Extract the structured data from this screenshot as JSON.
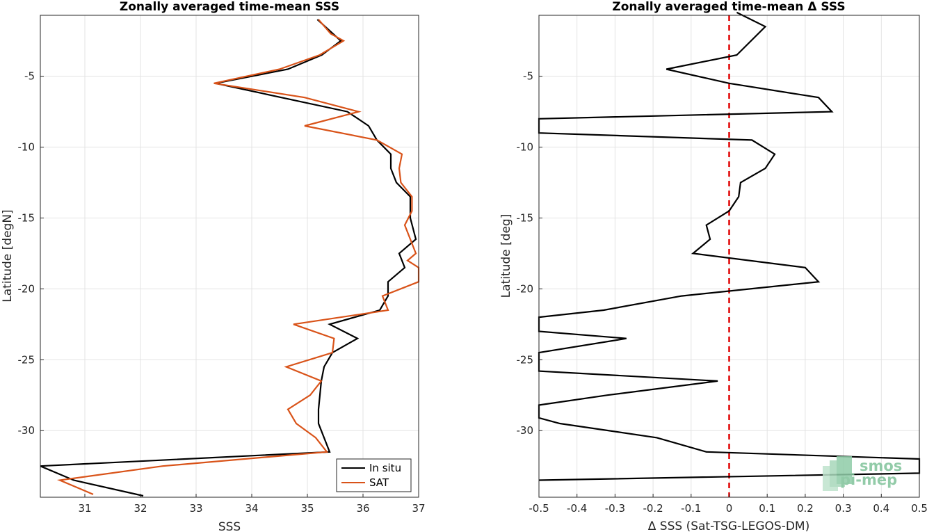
{
  "chart_data": [
    {
      "type": "line",
      "title": "Zonally averaged time-mean SSS",
      "xlabel": "SSS",
      "ylabel": "Latitude [degN]",
      "xlim": [
        30.2,
        37.0
      ],
      "ylim": [
        -34.7,
        -0.7
      ],
      "xticks": [
        31,
        32,
        33,
        34,
        35,
        36,
        37
      ],
      "yticks": [
        -5,
        -10,
        -15,
        -20,
        -25,
        -30
      ],
      "grid": true,
      "legend": "bottom-right",
      "series": [
        {
          "name": "In situ",
          "color": "#000000",
          "x": [
            35.18,
            35.6,
            35.26,
            34.65,
            33.35,
            35.72,
            36.1,
            36.25,
            36.5,
            36.5,
            36.6,
            36.85,
            36.85,
            36.95,
            36.65,
            36.75,
            36.45,
            36.45,
            36.3,
            35.4,
            35.9,
            35.45,
            35.3,
            35.25,
            35.2,
            35.2,
            35.4,
            30.2,
            30.8,
            32.05
          ],
          "y": [
            -1,
            -2.5,
            -3.5,
            -4.5,
            -5.5,
            -7.5,
            -8.5,
            -9.5,
            -10.5,
            -11.5,
            -12.5,
            -13.5,
            -15,
            -16.5,
            -17.5,
            -18.5,
            -19.5,
            -20.5,
            -21.5,
            -22.5,
            -23.5,
            -24.5,
            -25.5,
            -26.5,
            -28.5,
            -29.5,
            -31.5,
            -32.5,
            -33.5,
            -34.6
          ]
        },
        {
          "name": "SAT",
          "color": "#d95319",
          "x": [
            35.2,
            35.42,
            35.65,
            35.22,
            34.5,
            33.32,
            34.95,
            35.92,
            34.95,
            36.25,
            36.7,
            36.65,
            36.68,
            36.88,
            36.88,
            36.75,
            36.85,
            36.95,
            36.8,
            37.0,
            37.0,
            36.35,
            36.45,
            34.75,
            35.48,
            35.45,
            34.62,
            35.25,
            35.05,
            34.65,
            34.8,
            35.15,
            35.35,
            32.4,
            30.55,
            31.15
          ],
          "y": [
            -1,
            -2,
            -2.5,
            -3.5,
            -4.5,
            -5.5,
            -6.5,
            -7.5,
            -8.5,
            -9.5,
            -10.5,
            -11.5,
            -12.5,
            -13.5,
            -14.5,
            -15.5,
            -16.5,
            -17.5,
            -18,
            -18.5,
            -19.5,
            -20.5,
            -21.5,
            -22.5,
            -23.5,
            -24.5,
            -25.5,
            -26.5,
            -27.5,
            -28.5,
            -29.5,
            -30.5,
            -31.5,
            -32.5,
            -33.5,
            -34.5
          ]
        }
      ]
    },
    {
      "type": "line",
      "title": "Zonally averaged time-mean Δ SSS",
      "xlabel": "Δ SSS (Sat-TSG-LEGOS-DM)",
      "ylabel": "Latitude [deg]",
      "xlim": [
        -0.5,
        0.5
      ],
      "ylim": [
        -34.7,
        -0.7
      ],
      "xticks": [
        -0.5,
        -0.4,
        -0.3,
        -0.2,
        -0.1,
        0,
        0.1,
        0.2,
        0.3,
        0.4,
        0.5
      ],
      "yticks": [
        -5,
        -10,
        -15,
        -20,
        -25,
        -30
      ],
      "grid": true,
      "zero_line": {
        "x": 0,
        "color": "#e00000",
        "style": "dashed"
      },
      "series": [
        {
          "color": "#000000",
          "x": [
            0.02,
            0.095,
            0.02,
            -0.165,
            0,
            0.235,
            0.27,
            -0.5,
            -0.5,
            0.06,
            0.12,
            0.095,
            0.03,
            0.025,
            0,
            -0.06,
            -0.05,
            -0.095,
            -0.095,
            0.2,
            0.235,
            -0.125,
            -0.33,
            -0.5,
            -0.5,
            -0.27,
            -0.5,
            -0.5,
            -0.03,
            -0.32,
            -0.5,
            -0.5,
            -0.445,
            -0.19,
            -0.06,
            0.5,
            0.5,
            -0.5
          ],
          "y": [
            -0.5,
            -1.5,
            -3.5,
            -4.5,
            -5.5,
            -6.5,
            -7.5,
            -8,
            -9,
            -9.5,
            -10.5,
            -11.5,
            -12.5,
            -13.5,
            -14.5,
            -15.5,
            -16.5,
            -17.5,
            -17.5,
            -18.5,
            -19.5,
            -20.5,
            -21.5,
            -22,
            -23,
            -23.5,
            -24.5,
            -25.8,
            -26.5,
            -27.5,
            -28.2,
            -29.1,
            -29.5,
            -30.5,
            -31.5,
            -32,
            -33,
            -33.5
          ]
        }
      ]
    }
  ],
  "legend": {
    "items": [
      {
        "label": "In situ",
        "color": "#000000"
      },
      {
        "label": "SAT",
        "color": "#d95319"
      }
    ]
  },
  "logo": {
    "line1": "smos",
    "line2": "pi-mep",
    "color": "#7fc39a"
  }
}
